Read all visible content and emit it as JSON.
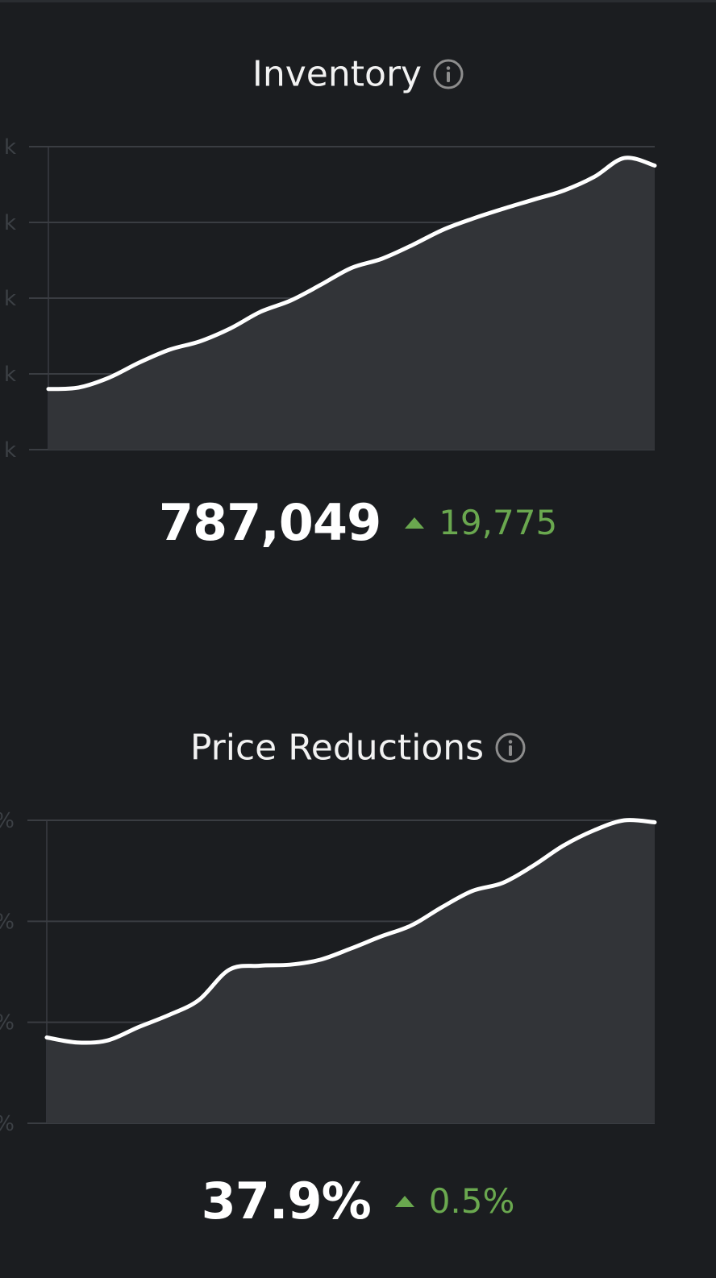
{
  "colors": {
    "background": "#1b1d20",
    "grid": "#3a3d42",
    "area_fill": "#323438",
    "line": "#ffffff",
    "positive": "#6aa84f",
    "tick_text": "#3c4045",
    "info_icon": "#9a9a9a"
  },
  "panels": [
    {
      "title": "Inventory",
      "info_icon": "info-icon",
      "value": "787,049",
      "change_direction": "up",
      "change": "19,775"
    },
    {
      "title": "Price Reductions",
      "info_icon": "info-icon",
      "value": "37.9%",
      "change_direction": "up",
      "change": "0.5%"
    }
  ],
  "chart_data": [
    {
      "type": "area",
      "title": "Inventory",
      "xlabel": "",
      "ylabel": "",
      "y_tick_labels": [
        "k",
        "k",
        "k",
        "k",
        "k"
      ],
      "grid": true,
      "ylim": [
        0,
        4
      ],
      "x": [
        0,
        1,
        2,
        3,
        4,
        5,
        6,
        7,
        8,
        9,
        10,
        11,
        12,
        13,
        14,
        15,
        16,
        17,
        18,
        19,
        20
      ],
      "series": [
        {
          "values": [
            0.8,
            0.82,
            0.95,
            1.15,
            1.32,
            1.43,
            1.6,
            1.82,
            1.97,
            2.18,
            2.4,
            2.52,
            2.7,
            2.9,
            3.05,
            3.18,
            3.3,
            3.42,
            3.6,
            3.85,
            3.75
          ]
        }
      ]
    },
    {
      "type": "area",
      "title": "Price Reductions",
      "xlabel": "",
      "ylabel": "",
      "y_tick_labels": [
        "%",
        "%",
        "%",
        "%"
      ],
      "grid": true,
      "ylim": [
        0,
        3
      ],
      "x": [
        0,
        1,
        2,
        3,
        4,
        5,
        6,
        7,
        8,
        9,
        10,
        11,
        12,
        13,
        14,
        15,
        16,
        17,
        18,
        19,
        20
      ],
      "series": [
        {
          "values": [
            0.85,
            0.8,
            0.82,
            0.95,
            1.07,
            1.22,
            1.52,
            1.56,
            1.57,
            1.62,
            1.73,
            1.85,
            1.96,
            2.14,
            2.3,
            2.38,
            2.55,
            2.75,
            2.9,
            3.0,
            2.98
          ]
        }
      ]
    }
  ]
}
